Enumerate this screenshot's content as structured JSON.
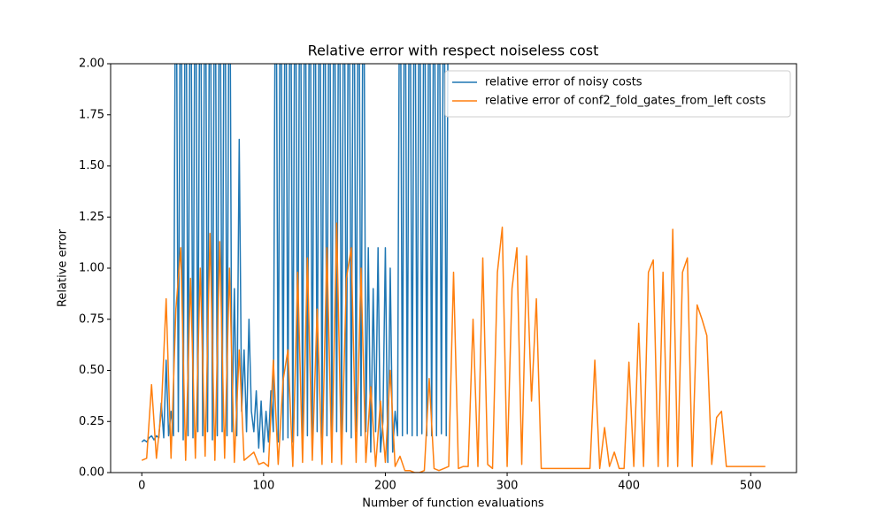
{
  "chart_data": {
    "type": "line",
    "title": "Relative error with respect noiseless cost",
    "xlabel": "Number of function evaluations",
    "ylabel": "Relative error",
    "xlim": [
      -25.6,
      537.6
    ],
    "xticks": [
      0,
      100,
      200,
      300,
      400,
      500
    ],
    "ylim": [
      0,
      2
    ],
    "yticks": [
      {
        "value": 0,
        "label": "0.00"
      },
      {
        "value": 0.25,
        "label": "0.25"
      },
      {
        "value": 0.5,
        "label": "0.50"
      },
      {
        "value": 0.75,
        "label": "0.75"
      },
      {
        "value": 1,
        "label": "1.00"
      },
      {
        "value": 1.25,
        "label": "1.25"
      },
      {
        "value": 1.5,
        "label": "1.50"
      },
      {
        "value": 1.75,
        "label": "1.75"
      },
      {
        "value": 2,
        "label": "2.00"
      }
    ],
    "legend": "upper right",
    "series": [
      {
        "name": "relative error of noisy costs",
        "color": "#1f77b4",
        "x": [
          0,
          2,
          4,
          6,
          8,
          10,
          12,
          14,
          16,
          18,
          20,
          22,
          24,
          26,
          28,
          30,
          32,
          34,
          36,
          38,
          40,
          42,
          44,
          46,
          48,
          50,
          52,
          54,
          56,
          58,
          60,
          62,
          64,
          66,
          68,
          70,
          72,
          74,
          76,
          78,
          80,
          82,
          84,
          86,
          88,
          90,
          92,
          94,
          96,
          98,
          100,
          102,
          104,
          106,
          108,
          110,
          112,
          114,
          116,
          118,
          120,
          122,
          124,
          126,
          128,
          130,
          132,
          134,
          136,
          138,
          140,
          142,
          144,
          146,
          148,
          150,
          152,
          154,
          156,
          158,
          160,
          162,
          164,
          166,
          168,
          170,
          172,
          174,
          176,
          178,
          180,
          182,
          184,
          186,
          188,
          190,
          192,
          194,
          196,
          198,
          200,
          202,
          204,
          206,
          208,
          210,
          212,
          214,
          216,
          218,
          220,
          222,
          224,
          226,
          228,
          230,
          232,
          234,
          236,
          238,
          240,
          242,
          244,
          246,
          248,
          250,
          252
        ],
        "values": [
          0.15,
          0.16,
          0.15,
          0.17,
          0.18,
          0.16,
          0.18,
          0.17,
          0.34,
          0.17,
          0.55,
          0.18,
          0.3,
          0.18,
          3,
          0.2,
          3,
          0.16,
          3,
          0.18,
          3,
          0.17,
          3,
          0.2,
          3,
          0.18,
          3,
          0.2,
          3,
          0.16,
          3,
          0.18,
          3,
          0.2,
          3,
          0.18,
          3,
          0.2,
          0.9,
          0.18,
          1.63,
          0.3,
          0.6,
          0.2,
          0.75,
          0.3,
          0.2,
          0.4,
          0.12,
          0.35,
          0.1,
          0.3,
          0.15,
          0.4,
          0.2,
          3,
          0.15,
          3,
          0.16,
          3,
          0.17,
          3,
          0.15,
          3,
          0.18,
          3,
          0.16,
          3,
          0.18,
          3,
          0.15,
          3,
          0.2,
          3,
          0.17,
          3,
          0.18,
          3,
          0.16,
          3,
          0.2,
          3,
          0.18,
          3,
          0.2,
          3,
          0.17,
          3,
          0.2,
          3,
          0.18,
          3,
          0.2,
          1.1,
          0.1,
          0.9,
          0.2,
          1.1,
          0.1,
          0.25,
          1.1,
          0.05,
          1.0,
          0.1,
          0.3,
          0.18,
          3,
          0.18,
          3,
          0.19,
          3,
          0.18,
          3,
          0.18,
          3,
          0.19,
          3,
          0.18,
          3,
          0.18,
          3,
          0.18,
          3,
          0.19,
          3,
          0.18,
          3
        ]
      },
      {
        "name": "relative error of conf2_fold_gates_from_left costs",
        "color": "#ff7f0e",
        "x": [
          0,
          4,
          8,
          12,
          16,
          20,
          24,
          28,
          32,
          36,
          40,
          44,
          48,
          52,
          56,
          60,
          64,
          68,
          72,
          76,
          80,
          84,
          88,
          92,
          96,
          100,
          104,
          108,
          112,
          116,
          120,
          124,
          128,
          132,
          136,
          140,
          144,
          148,
          152,
          156,
          160,
          164,
          168,
          172,
          176,
          180,
          184,
          188,
          192,
          196,
          200,
          204,
          208,
          212,
          216,
          220,
          224,
          228,
          232,
          236,
          240,
          244,
          248,
          252,
          256,
          260,
          264,
          268,
          272,
          276,
          280,
          284,
          288,
          292,
          296,
          300,
          304,
          308,
          312,
          316,
          320,
          324,
          328,
          332,
          336,
          340,
          344,
          348,
          352,
          356,
          360,
          364,
          368,
          372,
          376,
          380,
          384,
          388,
          392,
          396,
          400,
          404,
          408,
          412,
          416,
          420,
          424,
          428,
          432,
          436,
          440,
          444,
          448,
          452,
          456,
          460,
          464,
          468,
          472,
          476,
          480,
          484,
          488,
          492,
          496,
          500,
          504,
          508,
          512
        ],
        "values": [
          0.06,
          0.07,
          0.43,
          0.07,
          0.3,
          0.85,
          0.07,
          0.8,
          1.1,
          0.06,
          0.95,
          0.07,
          1.0,
          0.08,
          1.17,
          0.06,
          1.13,
          0.07,
          1.0,
          0.05,
          0.6,
          0.06,
          0.08,
          0.1,
          0.04,
          0.05,
          0.03,
          0.55,
          0.04,
          0.45,
          0.6,
          0.03,
          0.98,
          0.05,
          1.05,
          0.06,
          0.8,
          0.04,
          1.1,
          0.05,
          1.22,
          0.04,
          0.95,
          1.1,
          0.05,
          1.0,
          0.05,
          0.42,
          0.03,
          0.35,
          0.05,
          0.5,
          0.03,
          0.08,
          0.01,
          0.01,
          0.0,
          0.0,
          0.01,
          0.46,
          0.02,
          0.01,
          0.02,
          0.03,
          0.98,
          0.02,
          0.03,
          0.03,
          0.75,
          0.03,
          1.05,
          0.04,
          0.02,
          0.98,
          1.2,
          0.03,
          0.9,
          1.1,
          0.04,
          1.06,
          0.35,
          0.85,
          0.02,
          0.02,
          0.02,
          0.02,
          0.02,
          0.02,
          0.02,
          0.02,
          0.02,
          0.02,
          0.02,
          0.55,
          0.02,
          0.22,
          0.03,
          0.1,
          0.02,
          0.02,
          0.54,
          0.03,
          0.73,
          0.03,
          0.98,
          1.04,
          0.03,
          0.98,
          0.03,
          1.19,
          0.03,
          0.98,
          1.05,
          0.03,
          0.82,
          0.75,
          0.67,
          0.04,
          0.27,
          0.3,
          0.03,
          0.03,
          0.03,
          0.03,
          0.03,
          0.03,
          0.03,
          0.03,
          0.03
        ]
      }
    ]
  }
}
